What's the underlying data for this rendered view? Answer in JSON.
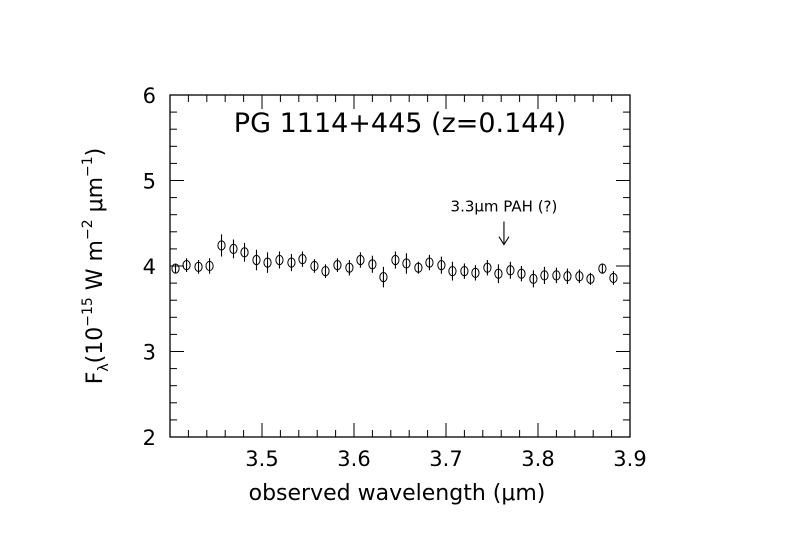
{
  "chart_data": {
    "type": "scatter",
    "title": "PG 1114+445 (z=0.144)",
    "xlabel": "observed wavelength (μm)",
    "ylabel": "F_λ (10^-15 W m^-2 μm^-1)",
    "ylabel_parts": {
      "f": "F",
      "lambda": "λ",
      "open": "(10",
      "exp1": "−15",
      "mid": " W m",
      "exp2": "−2",
      "sp": " ",
      "mu": "μm",
      "exp3": "−1",
      "close": ")"
    },
    "xlim": [
      3.4,
      3.9
    ],
    "ylim": [
      2,
      6
    ],
    "x_ticks": [
      "3.5",
      "3.6",
      "3.7",
      "3.8",
      "3.9"
    ],
    "y_ticks": [
      "2",
      "3",
      "4",
      "5",
      "6"
    ],
    "annotation": {
      "text": "3.3μm PAH (?)",
      "x": 3.763,
      "y_tip": 4.25,
      "y_tail": 4.52,
      "y_text": 4.64
    },
    "points": [
      {
        "x": 3.406,
        "y": 3.97,
        "err": 0.05
      },
      {
        "x": 3.418,
        "y": 4.01,
        "err": 0.08
      },
      {
        "x": 3.431,
        "y": 3.99,
        "err": 0.08
      },
      {
        "x": 3.443,
        "y": 4.0,
        "err": 0.09
      },
      {
        "x": 3.456,
        "y": 4.24,
        "err": 0.13
      },
      {
        "x": 3.469,
        "y": 4.2,
        "err": 0.11
      },
      {
        "x": 3.481,
        "y": 4.16,
        "err": 0.11
      },
      {
        "x": 3.494,
        "y": 4.07,
        "err": 0.12
      },
      {
        "x": 3.506,
        "y": 4.04,
        "err": 0.12
      },
      {
        "x": 3.519,
        "y": 4.07,
        "err": 0.1
      },
      {
        "x": 3.532,
        "y": 4.04,
        "err": 0.1
      },
      {
        "x": 3.544,
        "y": 4.08,
        "err": 0.09
      },
      {
        "x": 3.557,
        "y": 4.0,
        "err": 0.08
      },
      {
        "x": 3.569,
        "y": 3.94,
        "err": 0.08
      },
      {
        "x": 3.582,
        "y": 4.01,
        "err": 0.08
      },
      {
        "x": 3.595,
        "y": 3.98,
        "err": 0.09
      },
      {
        "x": 3.607,
        "y": 4.07,
        "err": 0.09
      },
      {
        "x": 3.62,
        "y": 4.02,
        "err": 0.1
      },
      {
        "x": 3.632,
        "y": 3.87,
        "err": 0.12
      },
      {
        "x": 3.645,
        "y": 4.07,
        "err": 0.1
      },
      {
        "x": 3.657,
        "y": 4.03,
        "err": 0.12
      },
      {
        "x": 3.67,
        "y": 3.98,
        "err": 0.07
      },
      {
        "x": 3.682,
        "y": 4.04,
        "err": 0.09
      },
      {
        "x": 3.695,
        "y": 4.01,
        "err": 0.1
      },
      {
        "x": 3.707,
        "y": 3.94,
        "err": 0.11
      },
      {
        "x": 3.72,
        "y": 3.94,
        "err": 0.09
      },
      {
        "x": 3.732,
        "y": 3.92,
        "err": 0.09
      },
      {
        "x": 3.745,
        "y": 3.98,
        "err": 0.09
      },
      {
        "x": 3.757,
        "y": 3.91,
        "err": 0.11
      },
      {
        "x": 3.77,
        "y": 3.95,
        "err": 0.1
      },
      {
        "x": 3.782,
        "y": 3.91,
        "err": 0.09
      },
      {
        "x": 3.795,
        "y": 3.85,
        "err": 0.1
      },
      {
        "x": 3.807,
        "y": 3.89,
        "err": 0.1
      },
      {
        "x": 3.82,
        "y": 3.89,
        "err": 0.09
      },
      {
        "x": 3.832,
        "y": 3.88,
        "err": 0.09
      },
      {
        "x": 3.845,
        "y": 3.88,
        "err": 0.08
      },
      {
        "x": 3.857,
        "y": 3.85,
        "err": 0.07
      },
      {
        "x": 3.87,
        "y": 3.97,
        "err": 0.06
      },
      {
        "x": 3.882,
        "y": 3.86,
        "err": 0.08
      }
    ]
  }
}
